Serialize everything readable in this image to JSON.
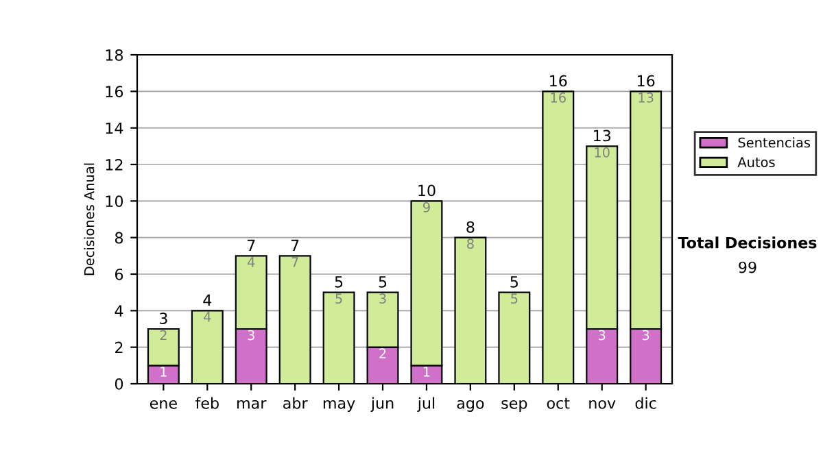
{
  "chart_data": {
    "type": "bar",
    "stacked": true,
    "ylabel": "Decisiones Anual",
    "categories": [
      "ene",
      "feb",
      "mar",
      "abr",
      "may",
      "jun",
      "jul",
      "ago",
      "sep",
      "oct",
      "nov",
      "dic"
    ],
    "series": [
      {
        "name": "Sentencias",
        "color": "#d070c8",
        "values": [
          1,
          0,
          3,
          0,
          0,
          2,
          1,
          0,
          0,
          0,
          3,
          3
        ],
        "value_labels": [
          "1",
          null,
          "3",
          null,
          null,
          "2",
          "1",
          null,
          null,
          null,
          "3",
          "3"
        ]
      },
      {
        "name": "Autos",
        "color": "#d0ec98",
        "values": [
          2,
          4,
          4,
          7,
          5,
          3,
          9,
          8,
          5,
          16,
          10,
          13
        ],
        "value_labels": [
          "2",
          "4",
          "4",
          "7",
          "5",
          "3",
          "9",
          "8",
          "5",
          "16",
          "10",
          "13"
        ]
      }
    ],
    "totals": [
      "3",
      "4",
      "7",
      "7",
      "5",
      "5",
      "10",
      "8",
      "5",
      "16",
      "13",
      "16"
    ],
    "ylim": [
      0,
      18
    ],
    "yticks": [
      0,
      2,
      4,
      6,
      8,
      10,
      12,
      14,
      16,
      18
    ],
    "grid": "y",
    "legend": "right",
    "annotations": [
      "Total Decisiones",
      "99"
    ]
  }
}
